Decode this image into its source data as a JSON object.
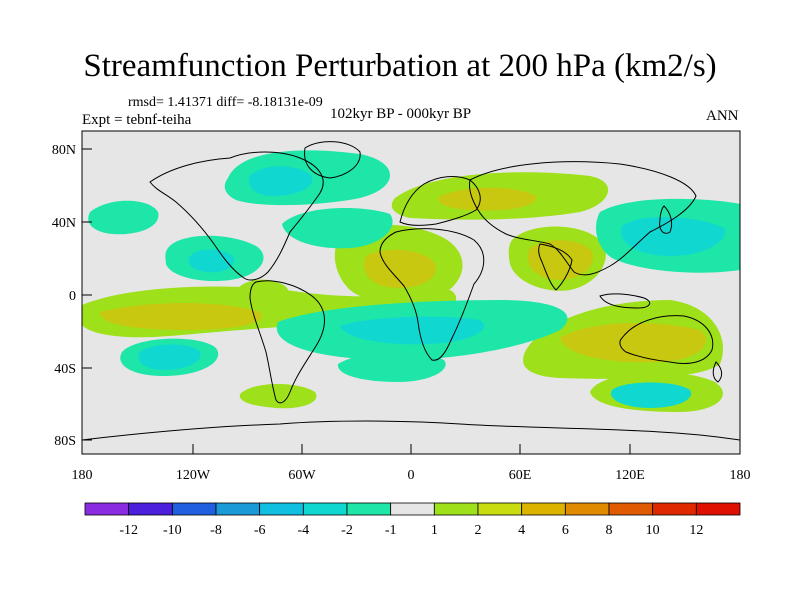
{
  "title": "Streamfunction Perturbation at 200 hPa (km2/s)",
  "stats_line": "rmsd= 1.41371 diff= -8.18131e-09",
  "experiment": "Expt = tebnf-teiha",
  "period": "102kyr BP - 000kyr BP",
  "season": "ANN",
  "lat_ticks": [
    "80N",
    "40N",
    "0",
    "40S",
    "80S"
  ],
  "lon_ticks": [
    "180",
    "120W",
    "60W",
    "0",
    "60E",
    "120E",
    "180"
  ],
  "colorbar": {
    "labels": [
      "-12",
      "-10",
      "-8",
      "-6",
      "-4",
      "-2",
      "-1",
      "1",
      "2",
      "4",
      "6",
      "8",
      "10",
      "12"
    ],
    "colors": [
      "#8a2be2",
      "#4b1fdc",
      "#1f5fe0",
      "#1a9ad6",
      "#11bfe0",
      "#10d8d0",
      "#1ee6a8",
      "#e6e6e6",
      "#9ee01a",
      "#c8dc10",
      "#dcb400",
      "#e08a00",
      "#e05a00",
      "#e02800",
      "#e01000"
    ]
  },
  "fills": {
    "background": "#e6e6e6",
    "neg1": "#1ee6a8",
    "neg2": "#10d8d0",
    "pos1": "#9ee01a",
    "pos2": "#c8c810"
  }
}
